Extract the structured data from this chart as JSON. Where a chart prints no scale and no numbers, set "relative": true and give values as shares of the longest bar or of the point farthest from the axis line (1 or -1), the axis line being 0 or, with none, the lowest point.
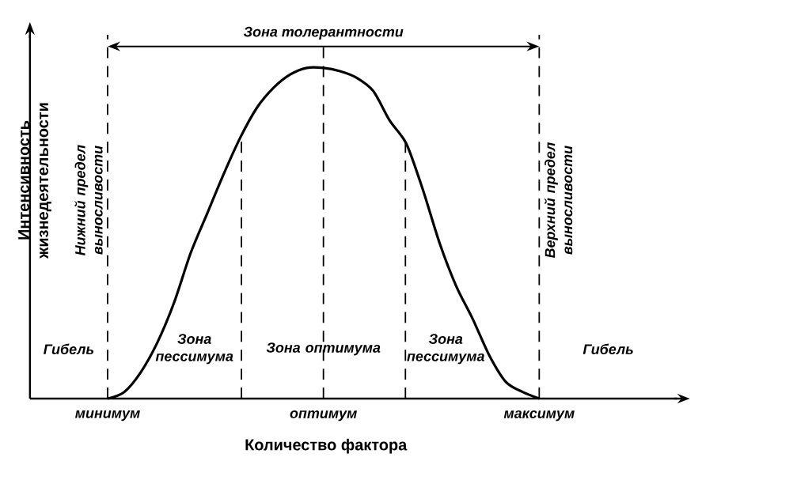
{
  "chart_data": {
    "type": "line",
    "relative": true,
    "xlabel": "Количество фактора",
    "ylabel": "Интенсивность жизнедеятельности",
    "categories": [
      "минимум",
      null,
      null,
      null,
      null,
      null,
      null,
      null,
      null,
      null,
      null,
      null,
      null,
      "оптимум",
      null,
      null,
      null,
      null,
      null,
      null,
      null,
      null,
      null,
      null,
      null,
      null,
      "максимум"
    ],
    "series": [
      {
        "color": "#000000",
        "values": [
          0,
          0.02,
          0.08,
          0.17,
          0.29,
          0.44,
          0.56,
          0.68,
          0.79,
          0.88,
          0.94,
          0.98,
          1,
          1,
          0.99,
          0.97,
          0.93,
          0.84,
          0.77,
          0.63,
          0.47,
          0.34,
          0.24,
          0.13,
          0.05,
          0.02,
          0
        ]
      }
    ],
    "annotations": [
      "Зона толерантности",
      "Нижний предел выносливости",
      "Верхний предел выносливости",
      "Гибель",
      "Зона пессимума",
      "Зона оптимума",
      "Зона пессимума",
      "Гибель"
    ],
    "marker": "none",
    "line_style": "solid",
    "grid": "x"
  }
}
